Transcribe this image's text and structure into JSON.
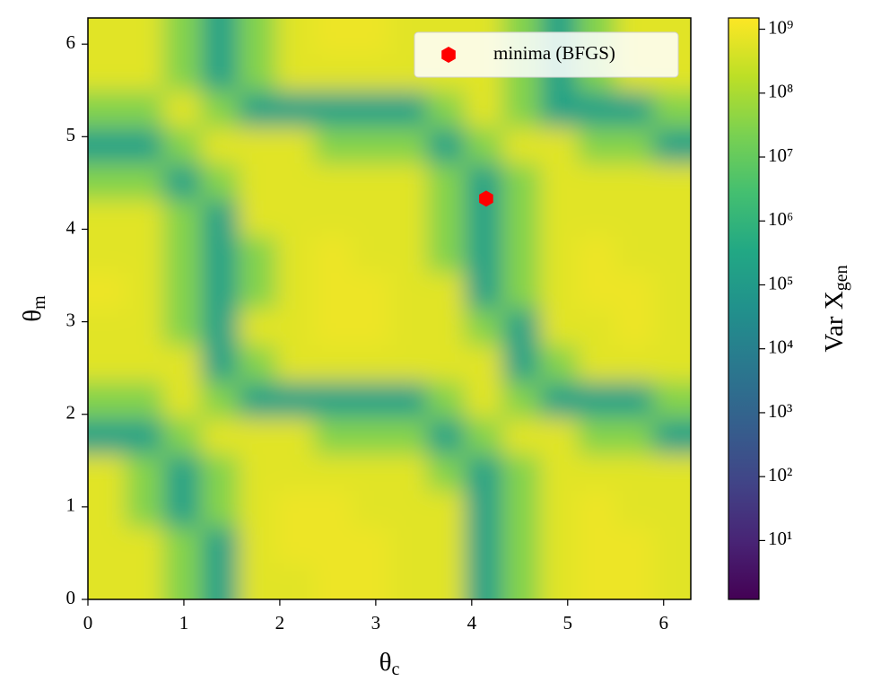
{
  "chart_data": {
    "type": "heatmap",
    "colormap": "viridis",
    "log_color": true,
    "xlabel": {
      "text": "θ",
      "sub": "c"
    },
    "ylabel": {
      "text": "θ",
      "sub": "m"
    },
    "colorbar_label": {
      "text": "Var X",
      "sub": "gen"
    },
    "xlim": [
      0,
      6.283
    ],
    "ylim": [
      0,
      6.283
    ],
    "xticks": [
      0,
      1,
      2,
      3,
      4,
      5,
      6
    ],
    "yticks": [
      0,
      1,
      2,
      3,
      4,
      5,
      6
    ],
    "clim": [
      1.2,
      1500000000
    ],
    "cticks": [
      {
        "value": 10,
        "label": "10¹"
      },
      {
        "value": 100,
        "label": "10²"
      },
      {
        "value": 1000,
        "label": "10³"
      },
      {
        "value": 10000,
        "label": "10⁴"
      },
      {
        "value": 100000,
        "label": "10⁵"
      },
      {
        "value": 1000000,
        "label": "10⁶"
      },
      {
        "value": 10000000,
        "label": "10⁷"
      },
      {
        "value": 100000000,
        "label": "10⁸"
      },
      {
        "value": 1000000000,
        "label": "10⁹"
      }
    ],
    "x": [
      0.196,
      0.589,
      0.982,
      1.374,
      1.767,
      2.16,
      2.553,
      2.945,
      3.338,
      3.731,
      4.123,
      4.516,
      4.909,
      5.301,
      5.694,
      6.087
    ],
    "y": [
      0.196,
      0.589,
      0.982,
      1.374,
      1.767,
      2.16,
      2.553,
      2.945,
      3.338,
      3.731,
      4.123,
      4.516,
      4.909,
      5.301,
      5.694,
      6.087
    ],
    "z": [
      [
        600000000,
        600000000,
        30000000,
        200000,
        600000000,
        600000000,
        900000000,
        900000000,
        600000000,
        600000000,
        200000,
        30000000,
        600000000,
        900000000,
        900000000,
        600000000
      ],
      [
        600000000,
        600000000,
        30000000,
        200000,
        600000000,
        900000000,
        900000000,
        900000000,
        600000000,
        600000000,
        200000,
        30000000,
        600000000,
        900000000,
        900000000,
        600000000
      ],
      [
        600000000,
        30000000,
        200000,
        30000000,
        600000000,
        900000000,
        900000000,
        600000000,
        600000000,
        600000000,
        200000,
        30000000,
        600000000,
        900000000,
        600000000,
        600000000
      ],
      [
        600000000,
        30000000,
        200000,
        30000000,
        600000000,
        600000000,
        600000000,
        600000000,
        600000000,
        30000000,
        200000,
        30000000,
        600000000,
        600000000,
        600000000,
        600000000
      ],
      [
        200000,
        200000,
        30000000,
        600000000,
        600000000,
        600000000,
        30000000,
        30000000,
        30000000,
        200000,
        30000000,
        600000000,
        600000000,
        30000000,
        30000000,
        200000
      ],
      [
        30000000,
        30000000,
        600000000,
        30000000,
        200000,
        200000,
        200000,
        200000,
        200000,
        30000000,
        600000000,
        30000000,
        200000,
        200000,
        200000,
        30000000
      ],
      [
        600000000,
        600000000,
        600000000,
        200000,
        30000000,
        600000000,
        600000000,
        600000000,
        600000000,
        600000000,
        600000000,
        200000,
        30000000,
        600000000,
        600000000,
        600000000
      ],
      [
        600000000,
        600000000,
        30000000,
        200000,
        600000000,
        600000000,
        900000000,
        900000000,
        600000000,
        600000000,
        30000000,
        200000,
        600000000,
        600000000,
        900000000,
        600000000
      ],
      [
        900000000,
        600000000,
        30000000,
        200000,
        30000000,
        600000000,
        900000000,
        900000000,
        600000000,
        600000000,
        200000,
        30000000,
        600000000,
        900000000,
        900000000,
        600000000
      ],
      [
        600000000,
        600000000,
        30000000,
        200000,
        30000000,
        600000000,
        900000000,
        600000000,
        600000000,
        30000000,
        200000,
        30000000,
        600000000,
        900000000,
        600000000,
        600000000
      ],
      [
        600000000,
        600000000,
        30000000,
        200000,
        600000000,
        600000000,
        600000000,
        600000000,
        600000000,
        30000000,
        200000,
        30000000,
        600000000,
        600000000,
        600000000,
        600000000
      ],
      [
        30000000,
        30000000,
        200000,
        30000000,
        600000000,
        600000000,
        600000000,
        600000000,
        600000000,
        30000000,
        200000,
        30000000,
        600000000,
        600000000,
        600000000,
        600000000
      ],
      [
        200000,
        200000,
        30000000,
        600000000,
        600000000,
        600000000,
        30000000,
        30000000,
        30000000,
        200000,
        30000000,
        600000000,
        600000000,
        30000000,
        30000000,
        200000
      ],
      [
        30000000,
        30000000,
        600000000,
        30000000,
        200000,
        200000,
        200000,
        200000,
        200000,
        30000000,
        600000000,
        30000000,
        200000,
        200000,
        200000,
        30000000
      ],
      [
        600000000,
        600000000,
        30000000,
        200000,
        30000000,
        600000000,
        600000000,
        600000000,
        600000000,
        600000000,
        600000000,
        30000000,
        200000,
        30000000,
        600000000,
        600000000
      ],
      [
        600000000,
        600000000,
        30000000,
        200000,
        30000000,
        600000000,
        900000000,
        900000000,
        600000000,
        600000000,
        600000000,
        30000000,
        200000,
        30000000,
        600000000,
        600000000
      ]
    ],
    "scatter": {
      "name": "minima (BFGS)",
      "color": "#ff0000",
      "x": [
        4.15
      ],
      "y": [
        4.33
      ]
    },
    "legend": "upper right"
  }
}
